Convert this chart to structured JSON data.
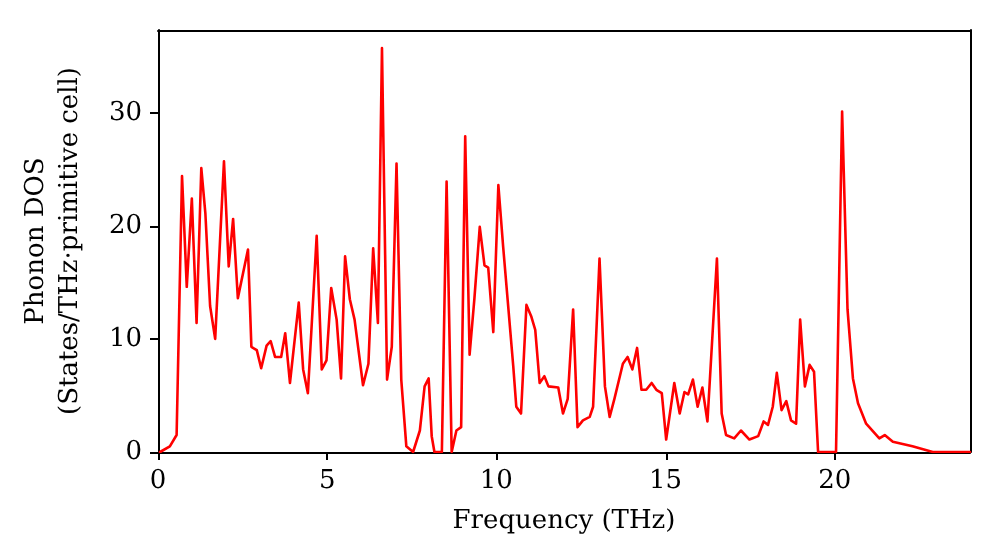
{
  "chart_data": {
    "type": "line",
    "xlabel": "Frequency (THz)",
    "ylabel": "Phonon DOS\n(States/THz·primitive cell)",
    "xlim": [
      0,
      24
    ],
    "ylim": [
      0,
      37.3
    ],
    "xticks": [
      0,
      5,
      10,
      15,
      20
    ],
    "yticks": [
      0,
      10,
      20,
      30
    ],
    "grid": false,
    "marker": "none",
    "line_style": "solid",
    "series": [
      {
        "color": "#ff0000",
        "x": [
          0.06,
          0.35,
          0.55,
          0.71,
          0.85,
          1.0,
          1.14,
          1.28,
          1.4,
          1.54,
          1.69,
          1.95,
          2.09,
          2.22,
          2.36,
          2.66,
          2.76,
          2.92,
          3.05,
          3.21,
          3.33,
          3.46,
          3.64,
          3.76,
          3.9,
          4.16,
          4.29,
          4.43,
          4.69,
          4.84,
          4.98,
          5.12,
          5.28,
          5.41,
          5.53,
          5.67,
          5.81,
          6.06,
          6.22,
          6.36,
          6.5,
          6.62,
          6.77,
          6.91,
          7.05,
          7.19,
          7.34,
          7.54,
          7.74,
          7.88,
          8.0,
          8.09,
          8.17,
          8.39,
          8.53,
          8.68,
          8.82,
          8.96,
          9.08,
          9.21,
          9.35,
          9.51,
          9.65,
          9.76,
          9.91,
          10.06,
          10.2,
          10.5,
          10.59,
          10.73,
          10.89,
          11.03,
          11.15,
          11.28,
          11.42,
          11.54,
          11.83,
          11.97,
          12.11,
          12.27,
          12.4,
          12.56,
          12.76,
          12.86,
          13.05,
          13.21,
          13.35,
          13.49,
          13.74,
          13.88,
          14.02,
          14.16,
          14.29,
          14.43,
          14.59,
          14.73,
          14.89,
          15.02,
          15.26,
          15.42,
          15.56,
          15.67,
          15.81,
          15.95,
          16.09,
          16.24,
          16.52,
          16.66,
          16.79,
          17.03,
          17.23,
          17.48,
          17.74,
          17.9,
          18.03,
          18.17,
          18.29,
          18.43,
          18.57,
          18.71,
          18.86,
          18.98,
          19.12,
          19.26,
          19.39,
          19.51,
          20.04,
          20.22,
          20.38,
          20.54,
          20.69,
          20.93,
          21.32,
          21.48,
          21.72,
          22.3,
          22.9,
          24.0
        ],
        "values": [
          0,
          0.5,
          1.5,
          24.4,
          14.6,
          22.4,
          11.4,
          25.1,
          21.1,
          12.9,
          10.0,
          25.7,
          16.4,
          20.6,
          13.6,
          17.9,
          9.3,
          9.0,
          7.4,
          9.4,
          9.8,
          8.4,
          8.4,
          10.5,
          6.1,
          13.2,
          7.3,
          5.2,
          19.1,
          7.3,
          8.1,
          14.5,
          11.7,
          6.5,
          17.3,
          13.5,
          11.7,
          5.9,
          7.8,
          18.0,
          11.4,
          35.7,
          6.4,
          9.3,
          25.5,
          6.4,
          0.5,
          0,
          1.9,
          5.8,
          6.5,
          1.4,
          0,
          0,
          23.9,
          0,
          1.9,
          2.2,
          27.9,
          8.6,
          13.5,
          19.9,
          16.5,
          16.3,
          10.6,
          23.6,
          18.2,
          7.6,
          4.0,
          3.4,
          13.0,
          12.0,
          10.8,
          6.1,
          6.7,
          5.8,
          5.7,
          3.4,
          4.7,
          12.6,
          2.2,
          2.8,
          3.1,
          4.0,
          17.1,
          5.8,
          3.1,
          4.7,
          7.8,
          8.4,
          7.3,
          9.2,
          5.5,
          5.5,
          6.1,
          5.5,
          5.2,
          1.1,
          6.1,
          3.4,
          5.3,
          5.1,
          6.4,
          4.0,
          5.7,
          2.7,
          17.1,
          3.4,
          1.5,
          1.2,
          1.9,
          1.1,
          1.4,
          2.7,
          2.4,
          4.0,
          7.0,
          3.7,
          4.5,
          2.8,
          2.5,
          11.7,
          5.8,
          7.7,
          7.1,
          0,
          0,
          30.1,
          12.6,
          6.5,
          4.3,
          2.5,
          1.2,
          1.5,
          0.9,
          0.5,
          0,
          0
        ]
      }
    ]
  }
}
